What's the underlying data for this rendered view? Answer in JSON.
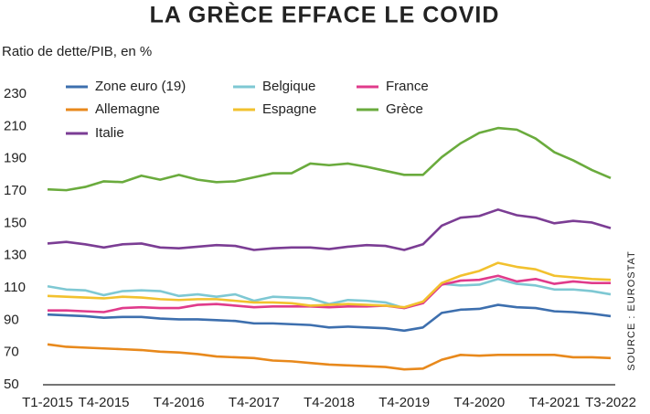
{
  "chart_data": {
    "type": "line",
    "title": "LA GRÈCE EFFACE LE COVID",
    "y_label": "Ratio de dette/PIB, en %",
    "source": "SOURCE : EUROSTAT",
    "categories": [
      "T1-2015",
      null,
      null,
      "T4-2015",
      null,
      null,
      null,
      "T4-2016",
      null,
      null,
      null,
      "T4-2017",
      null,
      null,
      null,
      "T4-2018",
      null,
      null,
      null,
      "T4-2019",
      null,
      null,
      null,
      "T4-2020",
      null,
      null,
      null,
      "T4-2021",
      null,
      null,
      "T3-2022"
    ],
    "ylim": [
      50,
      230
    ],
    "yticks": [
      50,
      70,
      90,
      110,
      130,
      150,
      170,
      190,
      210,
      230
    ],
    "grid": false,
    "series": [
      {
        "name": "Zone euro (19)",
        "color": "#3d6fae",
        "values": [
          93.5,
          93,
          92.5,
          91.5,
          92,
          92,
          91,
          90.5,
          90.5,
          90,
          89.5,
          88,
          88,
          87.5,
          87,
          85.5,
          86,
          85.5,
          85,
          83.5,
          85.5,
          94.5,
          96.5,
          97,
          99.5,
          98,
          97.5,
          95.5,
          95,
          94,
          92.5
        ]
      },
      {
        "name": "Belgique",
        "color": "#7ec8d3",
        "values": [
          111,
          109,
          108.5,
          105.5,
          108,
          108.5,
          108,
          105,
          106,
          104.5,
          106,
          102,
          104.5,
          104,
          103.5,
          100,
          102.5,
          102,
          101,
          97.5,
          101,
          112.5,
          111.5,
          112,
          115.5,
          112.5,
          111.5,
          109,
          109,
          108,
          106
        ]
      },
      {
        "name": "France",
        "color": "#e03b8b",
        "values": [
          96,
          96,
          95.5,
          95,
          97.5,
          98,
          97.5,
          97.5,
          99.5,
          100,
          99,
          98,
          98.5,
          98.5,
          98.5,
          98,
          98.5,
          98.5,
          99,
          97.5,
          100.5,
          112,
          114.5,
          115,
          117.5,
          114,
          115.5,
          112.5,
          114,
          113,
          113
        ]
      },
      {
        "name": "Allemagne",
        "color": "#e8891c",
        "values": [
          75,
          73.5,
          73,
          72.5,
          72,
          71.5,
          70.5,
          70,
          69,
          67.5,
          67,
          66.5,
          65,
          64.5,
          63.5,
          62.5,
          62,
          61.5,
          61,
          59.5,
          60,
          65.5,
          68.5,
          68,
          68.5,
          68.5,
          68.5,
          68.5,
          67,
          67,
          66.5
        ]
      },
      {
        "name": "Espagne",
        "color": "#f2c12e",
        "values": [
          105,
          104.5,
          104,
          103.5,
          104.5,
          104,
          103,
          102.5,
          103,
          103,
          102,
          101,
          101,
          100.5,
          99,
          99.5,
          100,
          99.5,
          99,
          98,
          101.5,
          113,
          117.5,
          120.5,
          125.5,
          123,
          121.5,
          117.5,
          116.5,
          115.5,
          115
        ]
      },
      {
        "name": "Grèce",
        "color": "#6aab3d",
        "values": [
          171,
          170.5,
          172.5,
          176,
          175.5,
          179.5,
          177,
          180,
          177,
          175.5,
          176,
          178.5,
          181,
          181,
          187,
          186,
          187,
          185,
          182.5,
          180,
          180,
          191,
          199.5,
          206,
          209,
          208,
          202.5,
          194,
          189,
          183,
          178
        ]
      },
      {
        "name": "Italie",
        "color": "#7b3d94",
        "values": [
          137.5,
          138.5,
          137,
          135,
          137,
          137.5,
          135,
          134.5,
          135.5,
          136.5,
          136,
          133.5,
          134.5,
          135,
          135,
          134,
          135.5,
          136.5,
          136,
          133.5,
          137,
          148.5,
          153.5,
          154.5,
          158.5,
          155,
          153.5,
          150,
          151.5,
          150.5,
          147
        ]
      }
    ]
  }
}
